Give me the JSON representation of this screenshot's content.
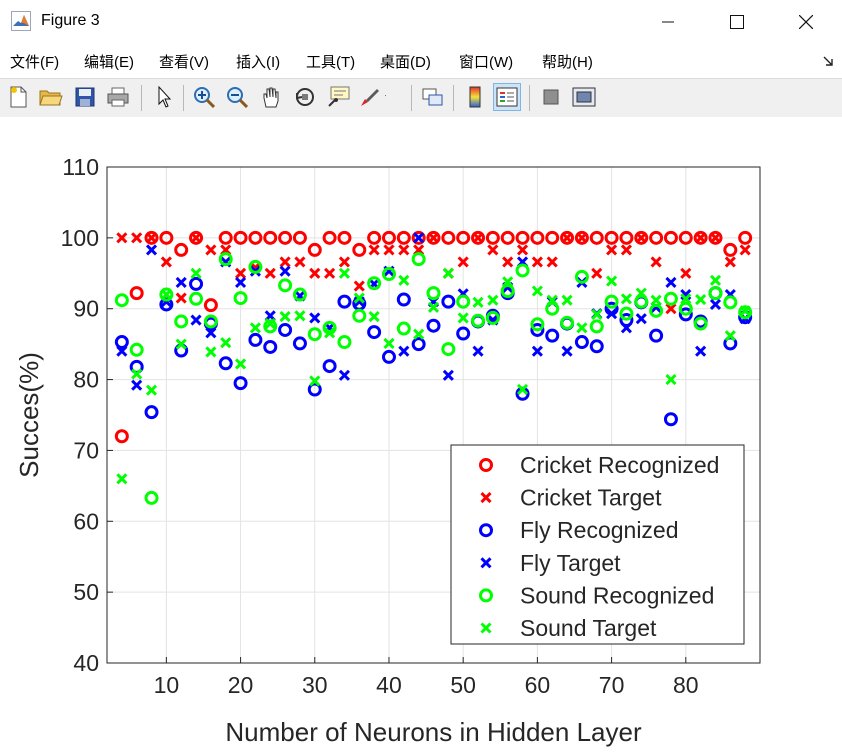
{
  "window": {
    "title": "Figure 3"
  },
  "menu": [
    {
      "label": "文件(F)"
    },
    {
      "label": "编辑(E)"
    },
    {
      "label": "查看(V)"
    },
    {
      "label": "插入(I)"
    },
    {
      "label": "工具(T)"
    },
    {
      "label": "桌面(D)"
    },
    {
      "label": "窗口(W)"
    },
    {
      "label": "帮助(H)"
    }
  ],
  "toolbar": [
    {
      "icon": "new-figure-icon"
    },
    {
      "icon": "open-file-icon"
    },
    {
      "icon": "save-icon"
    },
    {
      "icon": "print-icon"
    },
    {
      "icon": "pointer-icon"
    },
    {
      "icon": "zoom-in-icon"
    },
    {
      "icon": "zoom-out-icon"
    },
    {
      "icon": "pan-icon"
    },
    {
      "icon": "rotate-3d-icon"
    },
    {
      "icon": "data-cursor-icon"
    },
    {
      "icon": "brush-icon"
    },
    {
      "icon": "link-plot-icon"
    },
    {
      "icon": "colorbar-icon"
    },
    {
      "icon": "legend-icon"
    },
    {
      "icon": "hide-plot-tools-icon"
    },
    {
      "icon": "show-plot-tools-icon"
    }
  ],
  "colors": {
    "cricket": "#ff0000",
    "fly": "#0000ff",
    "sound": "#00ff00"
  },
  "chart_data": {
    "type": "scatter",
    "title": "",
    "xlabel": "Number of Neurons in Hidden Layer",
    "ylabel": "Succes(%)",
    "xlim": [
      2,
      90
    ],
    "ylim": [
      40,
      110
    ],
    "xticks": [
      10,
      20,
      30,
      40,
      50,
      60,
      70,
      80
    ],
    "yticks": [
      40,
      50,
      60,
      70,
      80,
      90,
      100,
      110
    ],
    "grid": true,
    "legend_position": "bottom-right",
    "x": [
      4,
      6,
      8,
      10,
      12,
      14,
      16,
      18,
      20,
      22,
      24,
      26,
      28,
      30,
      32,
      34,
      36,
      38,
      40,
      42,
      44,
      46,
      48,
      50,
      52,
      54,
      56,
      58,
      60,
      62,
      64,
      66,
      68,
      70,
      72,
      74,
      76,
      78,
      80,
      82,
      84,
      86,
      88
    ],
    "series": [
      {
        "name": "Cricket Recognized",
        "marker": "circle",
        "color": "#ff0000",
        "values": [
          72,
          92.2,
          100,
          100,
          98.3,
          100,
          90.5,
          100,
          100,
          100,
          100,
          100,
          100,
          98.3,
          100,
          100,
          98.3,
          100,
          100,
          100,
          100,
          100,
          100,
          100,
          100,
          100,
          100,
          100,
          100,
          100,
          100,
          100,
          100,
          100,
          100,
          100,
          100,
          100,
          100,
          100,
          100,
          98.3,
          100
        ]
      },
      {
        "name": "Cricket Target",
        "marker": "x",
        "color": "#ff0000",
        "values": [
          100,
          100,
          100,
          96.6,
          91.5,
          100,
          98.3,
          98.3,
          95,
          95.8,
          95,
          96.6,
          96.6,
          95,
          95,
          96.6,
          93.2,
          98.3,
          98.3,
          98.3,
          98.3,
          100,
          95,
          96.6,
          100,
          98.3,
          96.6,
          98.3,
          96.6,
          96.6,
          100,
          100,
          95,
          98.3,
          98.3,
          100,
          96.6,
          90,
          95,
          100,
          100,
          96.6,
          98.3
        ]
      },
      {
        "name": "Fly Recognized",
        "marker": "circle",
        "color": "#0000ff",
        "values": [
          85.3,
          81.8,
          75.4,
          90.6,
          84.1,
          93.5,
          87.9,
          82.3,
          79.5,
          85.6,
          84.6,
          87,
          85.1,
          78.6,
          81.9,
          91,
          90.7,
          86.7,
          83.2,
          91.3,
          85,
          87.6,
          91,
          86.5,
          88.2,
          89,
          92.2,
          78,
          87,
          86.2,
          87.9,
          85.3,
          84.7,
          90,
          88.4,
          90.9,
          86.2,
          74.4,
          89.2,
          88.2,
          92.2,
          85.1,
          88.8
        ]
      },
      {
        "name": "Fly Target",
        "marker": "x",
        "color": "#0000ff",
        "values": [
          84,
          79.2,
          98.3,
          91,
          93.7,
          88.4,
          86.6,
          96.6,
          93.7,
          95.3,
          89,
          95.3,
          91.8,
          88.7,
          87.3,
          80.6,
          91,
          93.5,
          95.3,
          84,
          100,
          91,
          80.6,
          92.1,
          84,
          88.4,
          93,
          96.6,
          84,
          91,
          84,
          93.7,
          89.3,
          89.3,
          87.3,
          88.6,
          90.2,
          93.7,
          92,
          84,
          90.6,
          92,
          88.6
        ]
      },
      {
        "name": "Sound Recognized",
        "marker": "circle",
        "color": "#00ff00",
        "values": [
          91.2,
          84.2,
          63.3,
          92,
          88.2,
          91.4,
          88.2,
          97,
          91.5,
          95.9,
          87.5,
          93.3,
          92,
          86.4,
          87.3,
          85.3,
          89,
          93.6,
          94.9,
          87.2,
          97,
          92.2,
          84.3,
          91,
          88.3,
          88.7,
          92.5,
          95.4,
          87.8,
          90,
          88,
          94.5,
          87.5,
          91,
          89.3,
          91,
          89.7,
          91.4,
          90,
          87.9,
          92.2,
          90.9,
          89.5
        ]
      },
      {
        "name": "Sound Target",
        "marker": "x",
        "color": "#00ff00",
        "values": [
          66,
          80.8,
          78.5,
          92,
          85,
          95,
          83.9,
          85.2,
          82.2,
          87.3,
          87.9,
          88.9,
          89,
          79.8,
          86.6,
          95,
          91.5,
          88.9,
          85.1,
          94,
          86.4,
          90.2,
          95,
          88.7,
          90.9,
          91.2,
          93.8,
          78.6,
          92.5,
          91.2,
          91.2,
          87.3,
          89.2,
          93.9,
          91.4,
          92.2,
          91.2,
          80,
          91.4,
          91.3,
          94,
          86.2,
          89.7
        ]
      }
    ]
  }
}
